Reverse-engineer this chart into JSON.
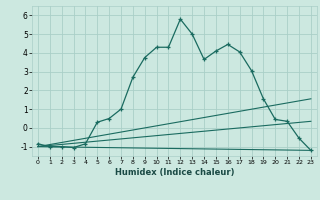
{
  "xlabel": "Humidex (Indice chaleur)",
  "xlim": [
    -0.5,
    23.5
  ],
  "ylim": [
    -1.5,
    6.5
  ],
  "yticks": [
    -1,
    0,
    1,
    2,
    3,
    4,
    5,
    6
  ],
  "xticks": [
    0,
    1,
    2,
    3,
    4,
    5,
    6,
    7,
    8,
    9,
    10,
    11,
    12,
    13,
    14,
    15,
    16,
    17,
    18,
    19,
    20,
    21,
    22,
    23
  ],
  "bg_color": "#cce8e0",
  "grid_color": "#aacfc8",
  "line_color": "#1a6b60",
  "lines": [
    {
      "x": [
        0,
        1,
        2,
        3,
        4,
        5,
        6,
        7,
        8,
        9,
        10,
        11,
        12,
        13,
        14,
        15,
        16,
        17,
        18,
        19,
        20,
        21,
        22,
        23
      ],
      "y": [
        -0.85,
        -1.0,
        -1.0,
        -1.05,
        -0.85,
        0.3,
        0.5,
        1.0,
        2.7,
        3.75,
        4.3,
        4.3,
        5.8,
        5.0,
        3.65,
        4.1,
        4.45,
        4.05,
        3.05,
        1.55,
        0.45,
        0.35,
        -0.55,
        -1.2
      ],
      "marker": true
    },
    {
      "x": [
        0,
        23
      ],
      "y": [
        -1.0,
        1.55
      ],
      "marker": false
    },
    {
      "x": [
        0,
        23
      ],
      "y": [
        -1.0,
        0.35
      ],
      "marker": false
    },
    {
      "x": [
        0,
        23
      ],
      "y": [
        -1.0,
        -1.2
      ],
      "marker": false
    }
  ]
}
